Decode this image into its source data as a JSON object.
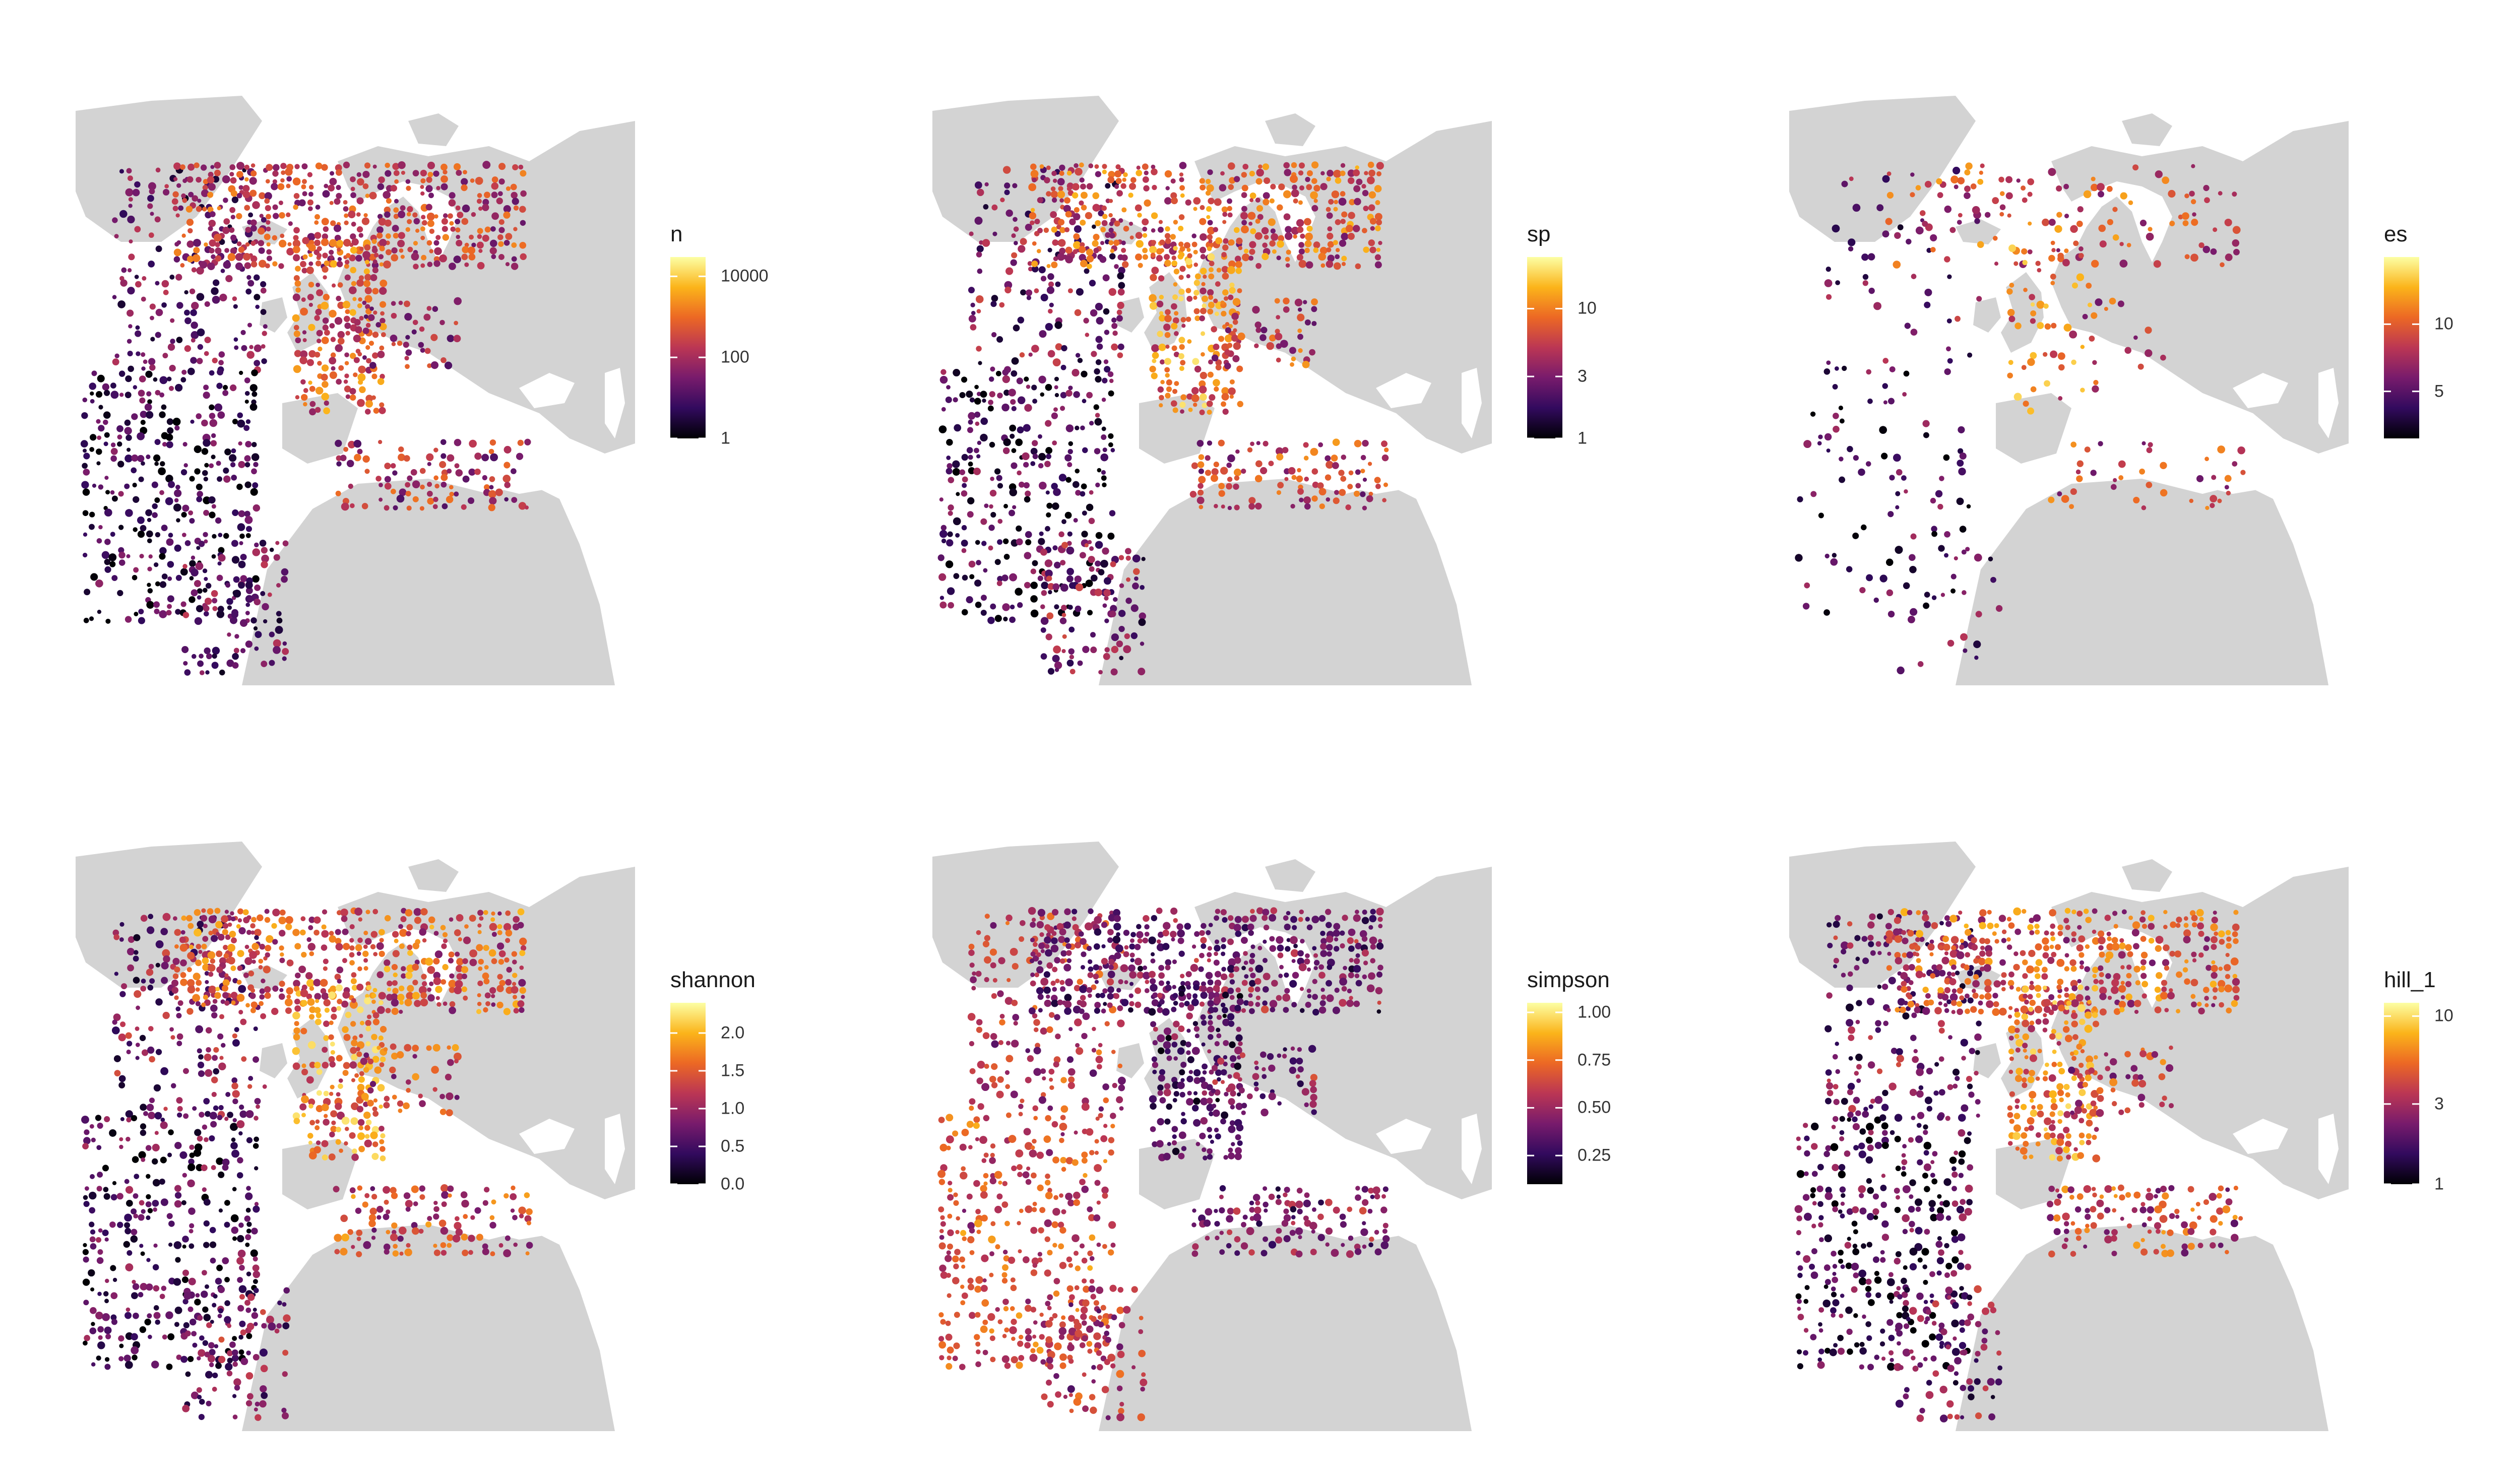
{
  "figure": {
    "palette": "inferno",
    "palette_colors": [
      "#000004",
      "#320a5e",
      "#781b6c",
      "#bb3654",
      "#ec6824",
      "#fbb41a",
      "#fcffa4"
    ],
    "land_color": "#d3d3d3",
    "ocean_color": "#ffffff"
  },
  "panels": [
    {
      "legend": {
        "title": "n",
        "scale": "log10",
        "range": [
          1,
          30000
        ],
        "ticks": [
          "10000",
          "100",
          "1"
        ],
        "tick_values": [
          10000,
          100,
          1
        ]
      },
      "hotspot_level": 0.55,
      "density": 1.0
    },
    {
      "legend": {
        "title": "sp",
        "scale": "log",
        "range": [
          1,
          25
        ],
        "ticks": [
          "10",
          "3",
          "1"
        ],
        "tick_values": [
          10,
          3,
          1
        ]
      },
      "hotspot_level": 0.75,
      "density": 1.0
    },
    {
      "legend": {
        "title": "es",
        "scale": "linear",
        "range": [
          1.5,
          15
        ],
        "ticks": [
          "10",
          "5"
        ],
        "tick_values": [
          10,
          5
        ]
      },
      "hotspot_level": 0.7,
      "density": 0.25
    },
    {
      "legend": {
        "title": "shannon",
        "scale": "linear",
        "range": [
          0,
          2.4
        ],
        "ticks": [
          "2.0",
          "1.5",
          "1.0",
          "0.5",
          "0.0"
        ],
        "tick_values": [
          2.0,
          1.5,
          1.0,
          0.5,
          0.0
        ]
      },
      "hotspot_level": 0.8,
      "density": 1.0
    },
    {
      "legend": {
        "title": "simpson",
        "scale": "linear",
        "range": [
          0.1,
          1.05
        ],
        "ticks": [
          "1.00",
          "0.75",
          "0.50",
          "0.25"
        ],
        "tick_values": [
          1.0,
          0.75,
          0.5,
          0.25
        ]
      },
      "hotspot_level": 0.15,
      "density": 1.0
    },
    {
      "legend": {
        "title": "hill_1",
        "scale": "log",
        "range": [
          1,
          12
        ],
        "ticks": [
          "10",
          "3",
          "1"
        ],
        "tick_values": [
          10,
          3,
          1
        ]
      },
      "hotspot_level": 0.75,
      "density": 1.0
    }
  ]
}
